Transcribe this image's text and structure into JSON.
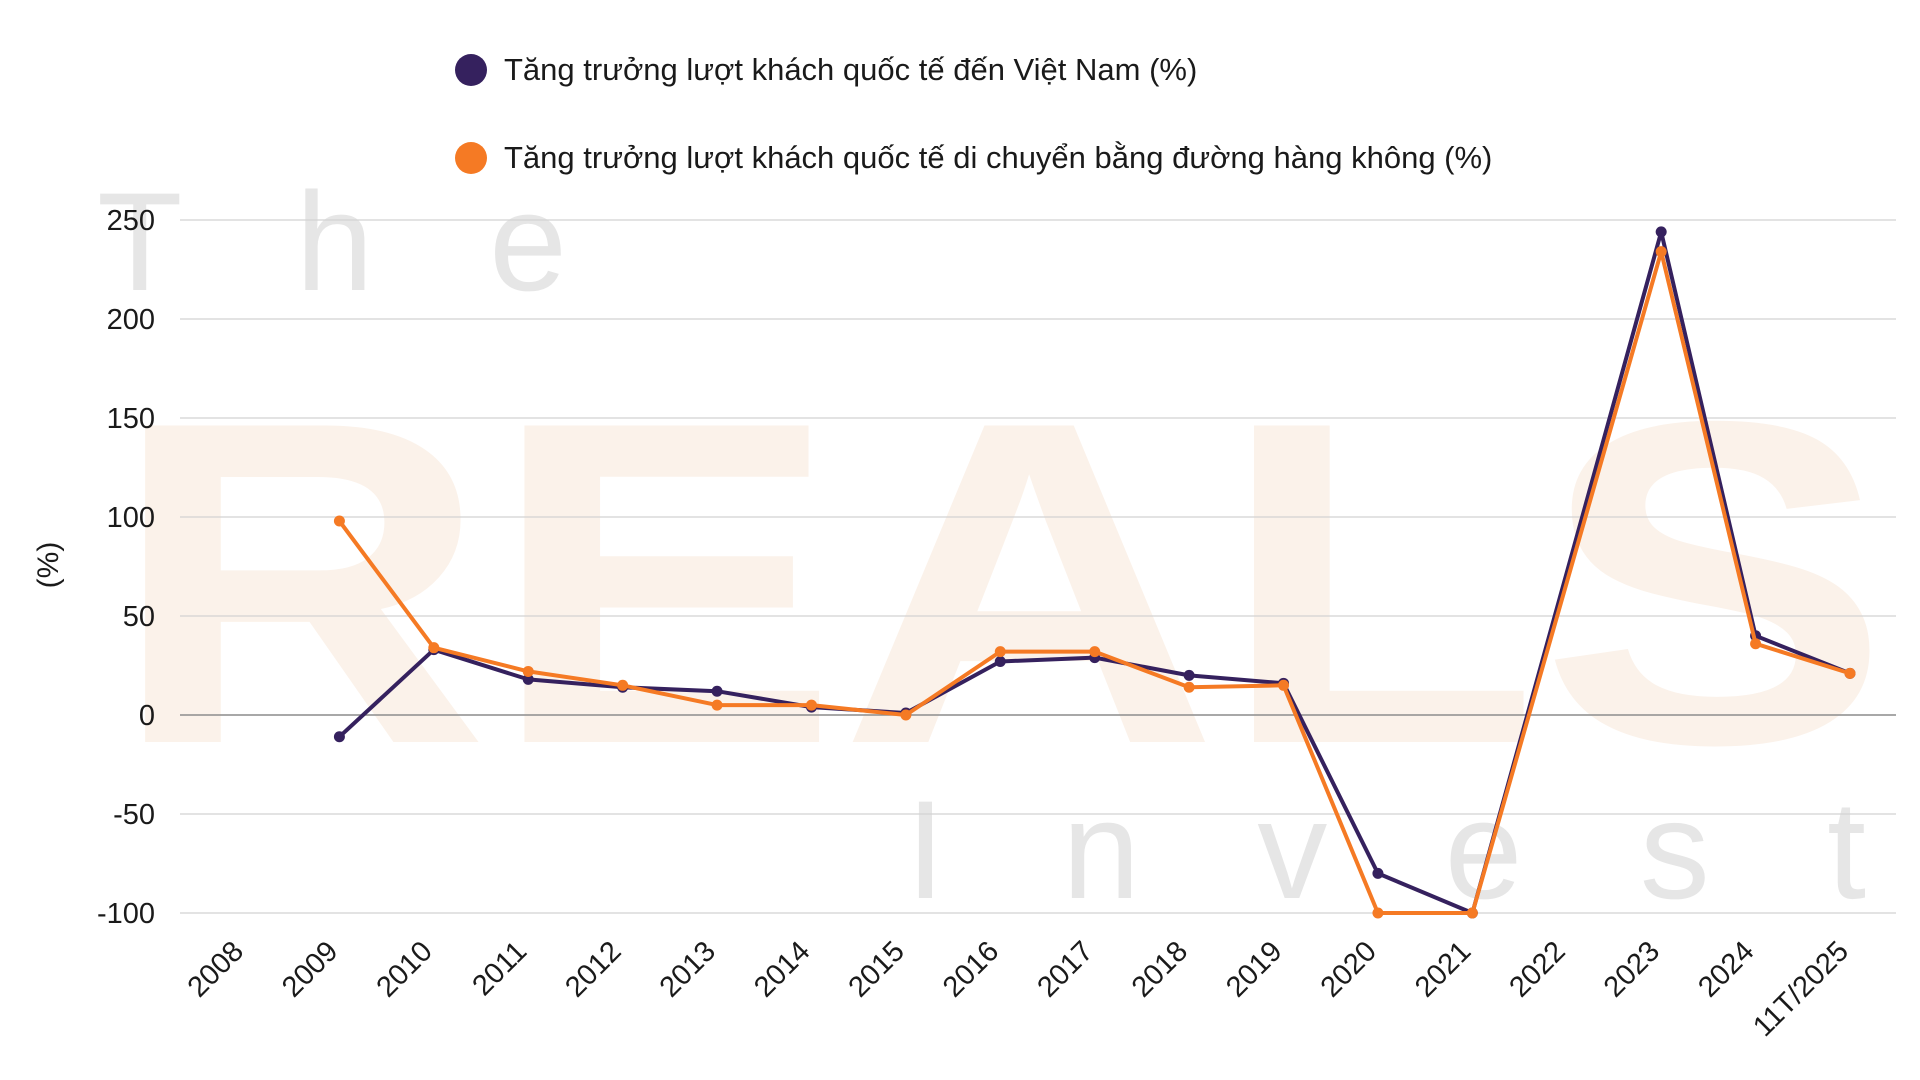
{
  "watermark": {
    "top": "T h e",
    "main": "REALS",
    "bottom": "I n v e s t"
  },
  "colors": {
    "series1": "#35215e",
    "series2": "#f57a24",
    "grid": "#d2d2d2",
    "zero_line": "#8c8c8c",
    "watermark_gray": "#e6e6e6",
    "watermark_peach": "#fbf2ea"
  },
  "chart_data": {
    "type": "line",
    "title": "",
    "xlabel": "",
    "ylabel": "(%)",
    "ylim": [
      -100,
      250
    ],
    "yticks": [
      250,
      200,
      150,
      100,
      50,
      0,
      -50,
      -100
    ],
    "grid": true,
    "legend_position": "top",
    "categories": [
      "2008",
      "2009",
      "2010",
      "2011",
      "2012",
      "2013",
      "2014",
      "2015",
      "2016",
      "2017",
      "2018",
      "2019",
      "2020",
      "2021",
      "2022",
      "2023",
      "2024",
      "11T/2025"
    ],
    "series": [
      {
        "name": "Tăng trưởng lượt khách quốc tế đến Việt Nam (%)",
        "color": "#35215e",
        "values": [
          null,
          -11,
          33,
          18,
          14,
          12,
          4,
          1,
          27,
          29,
          20,
          16,
          -80,
          -100,
          null,
          244,
          40,
          21
        ]
      },
      {
        "name": "Tăng trưởng lượt khách quốc tế di chuyển bằng đường hàng không (%)",
        "color": "#f57a24",
        "values": [
          null,
          98,
          34,
          22,
          15,
          5,
          5,
          0,
          32,
          32,
          14,
          15,
          -100,
          -100,
          null,
          234,
          36,
          21
        ]
      }
    ]
  }
}
